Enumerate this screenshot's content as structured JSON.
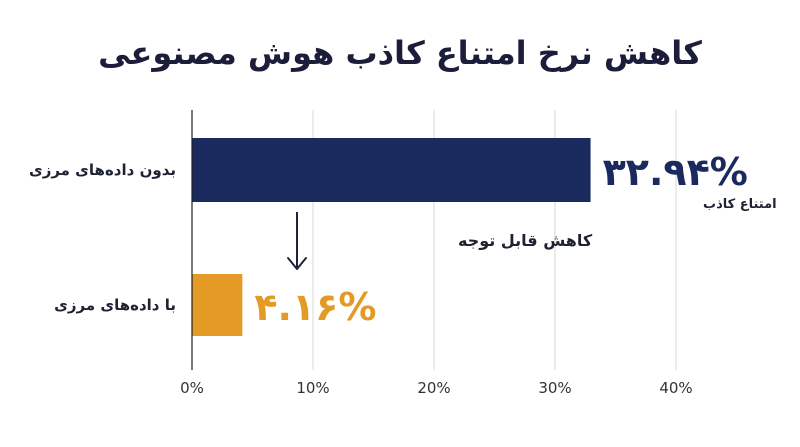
{
  "chart_data": {
    "type": "bar",
    "orientation": "horizontal",
    "title": "کاهش نرخ امتناع کاذب هوش مصنوعی",
    "categories": [
      "بدون داده‌های مرزی",
      "با داده‌های مرزی"
    ],
    "values": [
      32.94,
      4.16
    ],
    "value_labels": [
      "۳۲.۹۴%",
      "۴.۱۶%"
    ],
    "value_sublabel": "امتناع کاذب",
    "annotation": "کاهش قابل توجه",
    "colors": [
      "#1b2a5e",
      "#e49b26"
    ],
    "xlim": [
      0,
      40
    ],
    "xticks": [
      0,
      10,
      20,
      30,
      40
    ],
    "xtick_labels": [
      "0%",
      "10%",
      "20%",
      "30%",
      "40%"
    ],
    "grid": true
  }
}
